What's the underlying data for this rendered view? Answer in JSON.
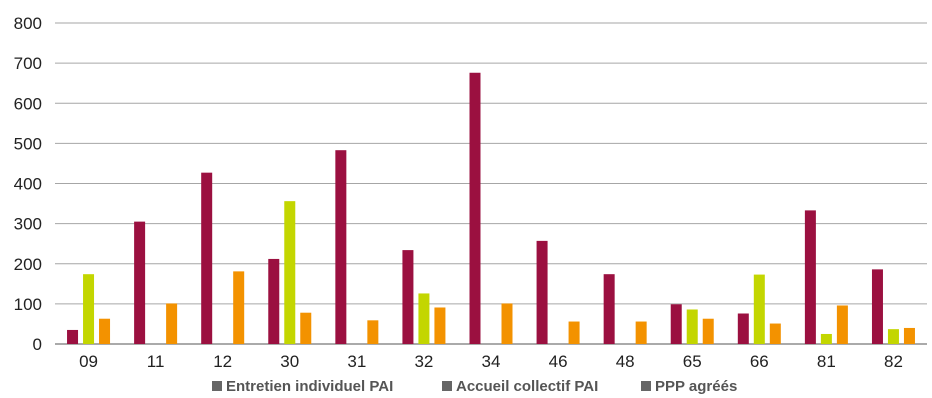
{
  "chart_data": {
    "type": "bar",
    "title": "",
    "xlabel": "",
    "ylabel": "",
    "ylim": [
      0,
      800
    ],
    "yticks": [
      0,
      100,
      200,
      300,
      400,
      500,
      600,
      700,
      800
    ],
    "grid": true,
    "legend_position": "bottom",
    "categories": [
      "09",
      "11",
      "12",
      "30",
      "31",
      "32",
      "34",
      "46",
      "48",
      "65",
      "66",
      "81",
      "82"
    ],
    "series": [
      {
        "name": "Entretien individuel PAI",
        "color": "#9b1040",
        "values": [
          35,
          305,
          427,
          212,
          483,
          234,
          676,
          257,
          174,
          99,
          76,
          333,
          186
        ]
      },
      {
        "name": "Accueil collectif PAI",
        "color": "#c3d600",
        "values": [
          174,
          null,
          null,
          356,
          null,
          126,
          null,
          null,
          null,
          86,
          173,
          25,
          37
        ]
      },
      {
        "name": "PPP agréés",
        "color": "#f39200",
        "values": [
          63,
          101,
          181,
          78,
          59,
          91,
          101,
          56,
          56,
          63,
          51,
          96,
          40
        ]
      }
    ]
  }
}
